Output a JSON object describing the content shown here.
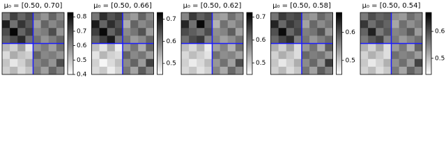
{
  "chart_data": [
    {
      "type": "heatmap",
      "title": "μ₀ = [0.50, 0.70]",
      "zlim": [
        0.4,
        0.83
      ],
      "zticks": [
        0.4,
        0.5,
        0.6,
        0.7,
        0.8
      ],
      "values": [
        [
          0.62,
          0.72,
          0.66,
          0.7,
          0.62,
          0.58,
          0.66,
          0.6
        ],
        [
          0.78,
          0.64,
          0.74,
          0.68,
          0.56,
          0.66,
          0.6,
          0.64
        ],
        [
          0.7,
          0.82,
          0.66,
          0.72,
          0.6,
          0.62,
          0.7,
          0.58
        ],
        [
          0.66,
          0.7,
          0.76,
          0.64,
          0.64,
          0.58,
          0.62,
          0.66
        ],
        [
          0.52,
          0.48,
          0.56,
          0.44,
          0.58,
          0.62,
          0.56,
          0.64
        ],
        [
          0.46,
          0.54,
          0.5,
          0.48,
          0.66,
          0.6,
          0.62,
          0.58
        ],
        [
          0.5,
          0.44,
          0.48,
          0.54,
          0.6,
          0.64,
          0.58,
          0.7
        ],
        [
          0.48,
          0.52,
          0.46,
          0.5,
          0.62,
          0.56,
          0.66,
          0.6
        ]
      ]
    },
    {
      "type": "heatmap",
      "title": "μ₀ = [0.50, 0.66]",
      "zlim": [
        0.45,
        0.73
      ],
      "zticks": [
        0.5,
        0.6,
        0.7
      ],
      "values": [
        [
          0.6,
          0.68,
          0.64,
          0.66,
          0.58,
          0.56,
          0.62,
          0.58
        ],
        [
          0.7,
          0.62,
          0.68,
          0.64,
          0.54,
          0.62,
          0.58,
          0.6
        ],
        [
          0.66,
          0.72,
          0.62,
          0.66,
          0.58,
          0.6,
          0.64,
          0.56
        ],
        [
          0.62,
          0.66,
          0.7,
          0.6,
          0.6,
          0.56,
          0.58,
          0.62
        ],
        [
          0.52,
          0.48,
          0.54,
          0.47,
          0.56,
          0.6,
          0.54,
          0.62
        ],
        [
          0.48,
          0.53,
          0.5,
          0.49,
          0.62,
          0.58,
          0.6,
          0.56
        ],
        [
          0.5,
          0.46,
          0.49,
          0.52,
          0.58,
          0.62,
          0.56,
          0.66
        ],
        [
          0.49,
          0.51,
          0.47,
          0.5,
          0.6,
          0.55,
          0.63,
          0.58
        ]
      ]
    },
    {
      "type": "heatmap",
      "title": "μ₀ = [0.50, 0.62]",
      "zlim": [
        0.45,
        0.72
      ],
      "zticks": [
        0.5,
        0.6,
        0.7
      ],
      "values": [
        [
          0.58,
          0.66,
          0.62,
          0.64,
          0.56,
          0.55,
          0.6,
          0.57
        ],
        [
          0.68,
          0.6,
          0.71,
          0.62,
          0.53,
          0.6,
          0.56,
          0.59
        ],
        [
          0.64,
          0.62,
          0.6,
          0.64,
          0.57,
          0.58,
          0.62,
          0.55
        ],
        [
          0.6,
          0.64,
          0.66,
          0.58,
          0.58,
          0.55,
          0.57,
          0.6
        ],
        [
          0.52,
          0.49,
          0.53,
          0.47,
          0.55,
          0.58,
          0.53,
          0.6
        ],
        [
          0.49,
          0.52,
          0.5,
          0.48,
          0.6,
          0.57,
          0.58,
          0.55
        ],
        [
          0.5,
          0.47,
          0.49,
          0.52,
          0.56,
          0.6,
          0.55,
          0.64
        ],
        [
          0.49,
          0.51,
          0.48,
          0.5,
          0.58,
          0.54,
          0.61,
          0.57
        ]
      ]
    },
    {
      "type": "heatmap",
      "title": "μ₀ = [0.50, 0.58]",
      "zlim": [
        0.45,
        0.67
      ],
      "zticks": [
        0.5,
        0.6
      ],
      "values": [
        [
          0.57,
          0.62,
          0.6,
          0.61,
          0.55,
          0.54,
          0.58,
          0.56
        ],
        [
          0.64,
          0.58,
          0.62,
          0.6,
          0.53,
          0.58,
          0.55,
          0.57
        ],
        [
          0.6,
          0.66,
          0.58,
          0.61,
          0.56,
          0.57,
          0.6,
          0.54
        ],
        [
          0.58,
          0.61,
          0.63,
          0.56,
          0.57,
          0.54,
          0.56,
          0.58
        ],
        [
          0.52,
          0.49,
          0.53,
          0.48,
          0.54,
          0.57,
          0.52,
          0.59
        ],
        [
          0.49,
          0.52,
          0.5,
          0.48,
          0.58,
          0.56,
          0.57,
          0.54
        ],
        [
          0.5,
          0.47,
          0.49,
          0.52,
          0.55,
          0.58,
          0.54,
          0.62
        ],
        [
          0.49,
          0.51,
          0.48,
          0.5,
          0.57,
          0.53,
          0.59,
          0.56
        ]
      ]
    },
    {
      "type": "heatmap",
      "title": "μ₀ = [0.50, 0.54]",
      "zlim": [
        0.44,
        0.67
      ],
      "zticks": [
        0.5,
        0.6
      ],
      "values": [
        [
          0.56,
          0.6,
          0.58,
          0.59,
          0.54,
          0.53,
          0.57,
          0.55
        ],
        [
          0.62,
          0.57,
          0.6,
          0.58,
          0.52,
          0.57,
          0.54,
          0.56
        ],
        [
          0.58,
          0.64,
          0.56,
          0.59,
          0.55,
          0.56,
          0.59,
          0.53
        ],
        [
          0.56,
          0.59,
          0.61,
          0.55,
          0.56,
          0.53,
          0.55,
          0.57
        ],
        [
          0.51,
          0.48,
          0.52,
          0.47,
          0.53,
          0.56,
          0.51,
          0.58
        ],
        [
          0.48,
          0.51,
          0.49,
          0.47,
          0.57,
          0.55,
          0.56,
          0.53
        ],
        [
          0.49,
          0.46,
          0.48,
          0.51,
          0.54,
          0.57,
          0.53,
          0.61
        ],
        [
          0.48,
          0.5,
          0.47,
          0.49,
          0.56,
          0.52,
          0.58,
          0.55
        ]
      ]
    }
  ]
}
